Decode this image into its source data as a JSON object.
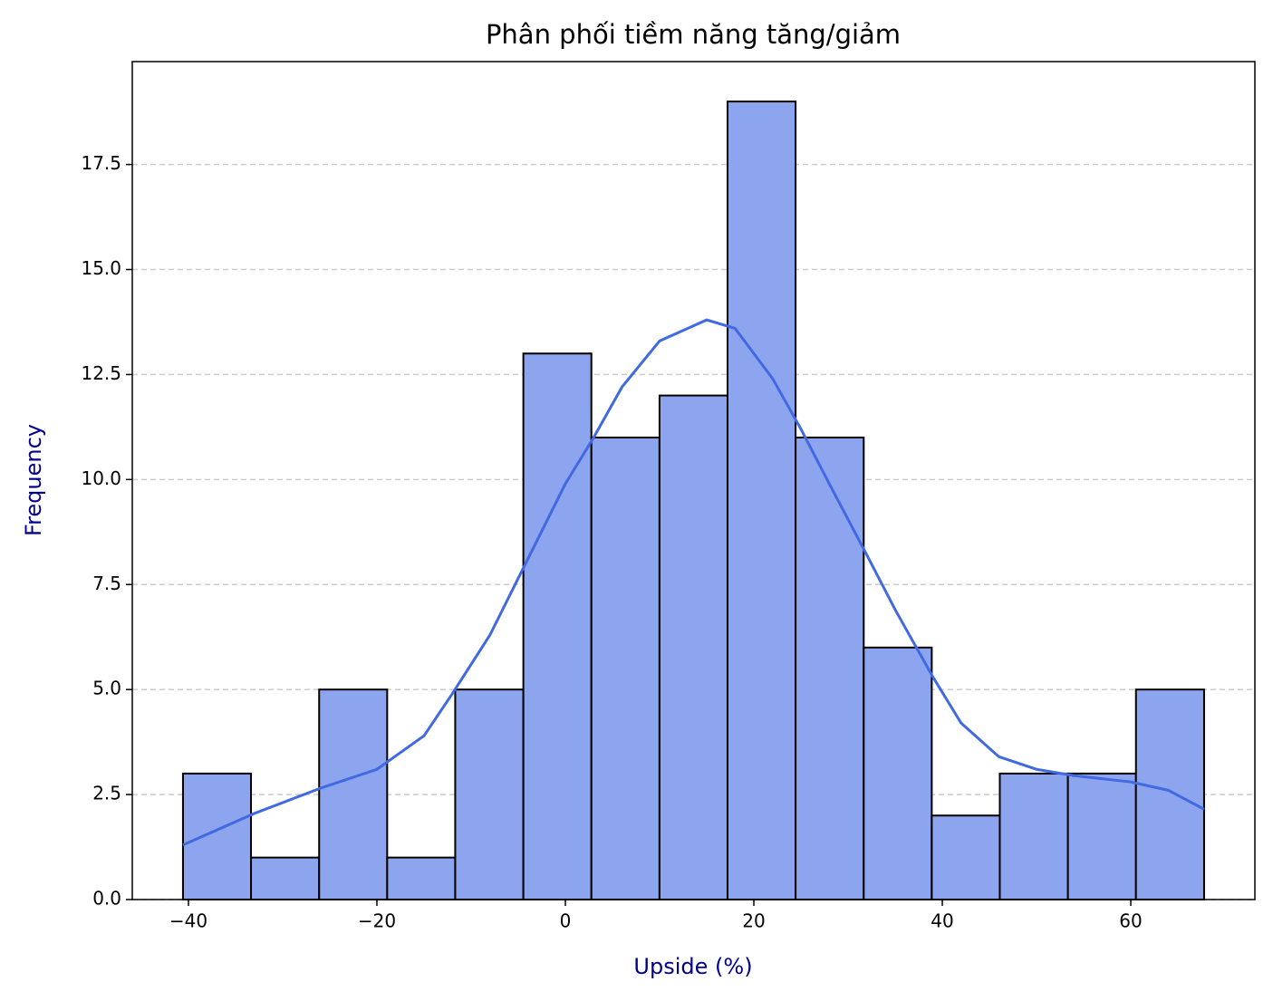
{
  "chart_data": {
    "type": "histogram",
    "title": "Phân phối tiềm năng tăng/giảm",
    "x_label": "Upside (%)",
    "y_label": "Frequency",
    "bins": [
      -40.58,
      -33.36,
      -26.13,
      -18.91,
      -11.69,
      -4.46,
      2.76,
      9.99,
      17.21,
      24.43,
      31.66,
      38.88,
      46.1,
      53.33,
      60.55,
      67.78
    ],
    "values": [
      3,
      1,
      5,
      1,
      5,
      13,
      11,
      12,
      19,
      11,
      6,
      2,
      3,
      3,
      5
    ],
    "color": "#8da4ee",
    "edge_color": "#000000",
    "kde": {
      "color": "#4169e1",
      "x": [
        -40.58,
        -33,
        -26,
        -20,
        -15,
        -12,
        -8,
        -4,
        0,
        3,
        6,
        10,
        15,
        18,
        22,
        25,
        28,
        32,
        35,
        39,
        42,
        46,
        50,
        54,
        60,
        64,
        67.78
      ],
      "values": [
        1.3,
        2.05,
        2.65,
        3.1,
        3.9,
        4.9,
        6.3,
        8.1,
        9.9,
        11.0,
        12.2,
        13.3,
        13.8,
        13.6,
        12.4,
        11.2,
        9.9,
        8.2,
        6.9,
        5.3,
        4.2,
        3.4,
        3.1,
        2.95,
        2.8,
        2.6,
        2.15
      ]
    },
    "xlim": [
      -45.96,
      73.17
    ],
    "ylim": [
      0,
      19.95
    ],
    "xticks": [
      {
        "value": -40,
        "label": "−40"
      },
      {
        "value": -20,
        "label": "−20"
      },
      0,
      20,
      40,
      60
    ],
    "yticks": [
      {
        "value": 0,
        "label": "0.0"
      },
      2.5,
      {
        "value": 5,
        "label": "5.0"
      },
      7.5,
      {
        "value": 10,
        "label": "10.0"
      },
      12.5,
      {
        "value": 15,
        "label": "15.0"
      },
      17.5
    ],
    "grid": true,
    "label_color": "#00008b"
  }
}
